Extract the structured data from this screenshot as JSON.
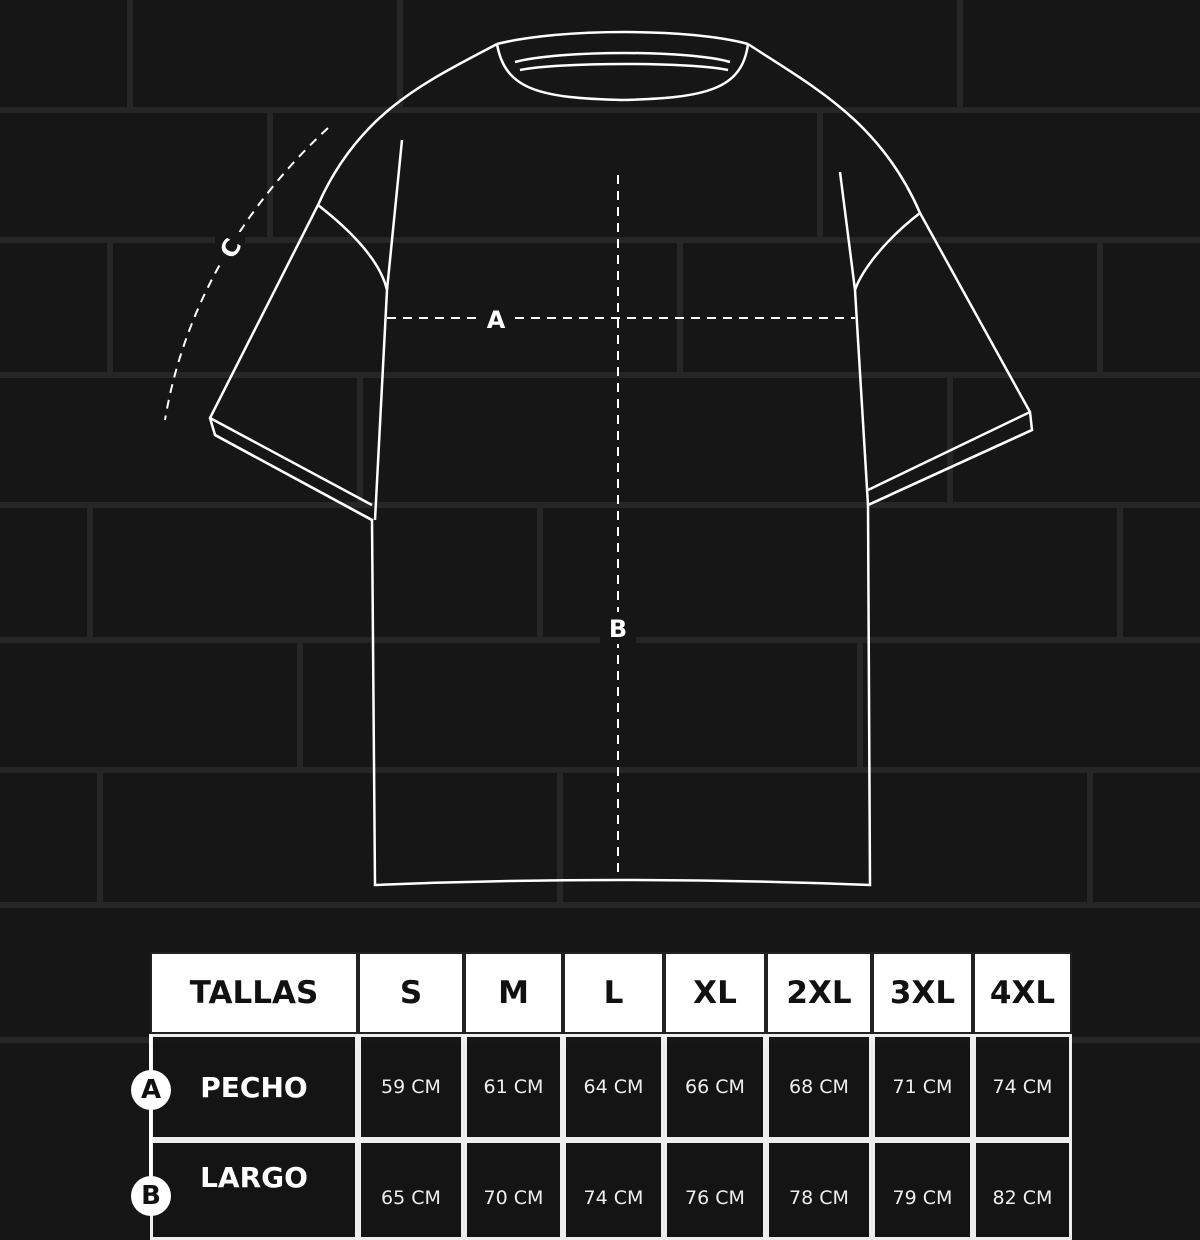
{
  "diagram": {
    "measure_labels": {
      "a": "A",
      "b": "B",
      "c": "C"
    }
  },
  "table": {
    "header": "TALLAS",
    "sizes": [
      "S",
      "M",
      "L",
      "XL",
      "2XL",
      "3XL",
      "4XL"
    ],
    "rows": [
      {
        "badge": "A",
        "label": "PECHO",
        "values": [
          "59 CM",
          "61 CM",
          "64 CM",
          "66 CM",
          "68 CM",
          "71 CM",
          "74 CM"
        ]
      },
      {
        "badge": "B",
        "label": "LARGO",
        "values": [
          "65 CM",
          "70 CM",
          "74 CM",
          "76 CM",
          "78 CM",
          "79 CM",
          "82 CM"
        ]
      }
    ]
  },
  "colors": {
    "background": "#161616",
    "line": "#ffffff",
    "header_bg": "#ffffff"
  }
}
